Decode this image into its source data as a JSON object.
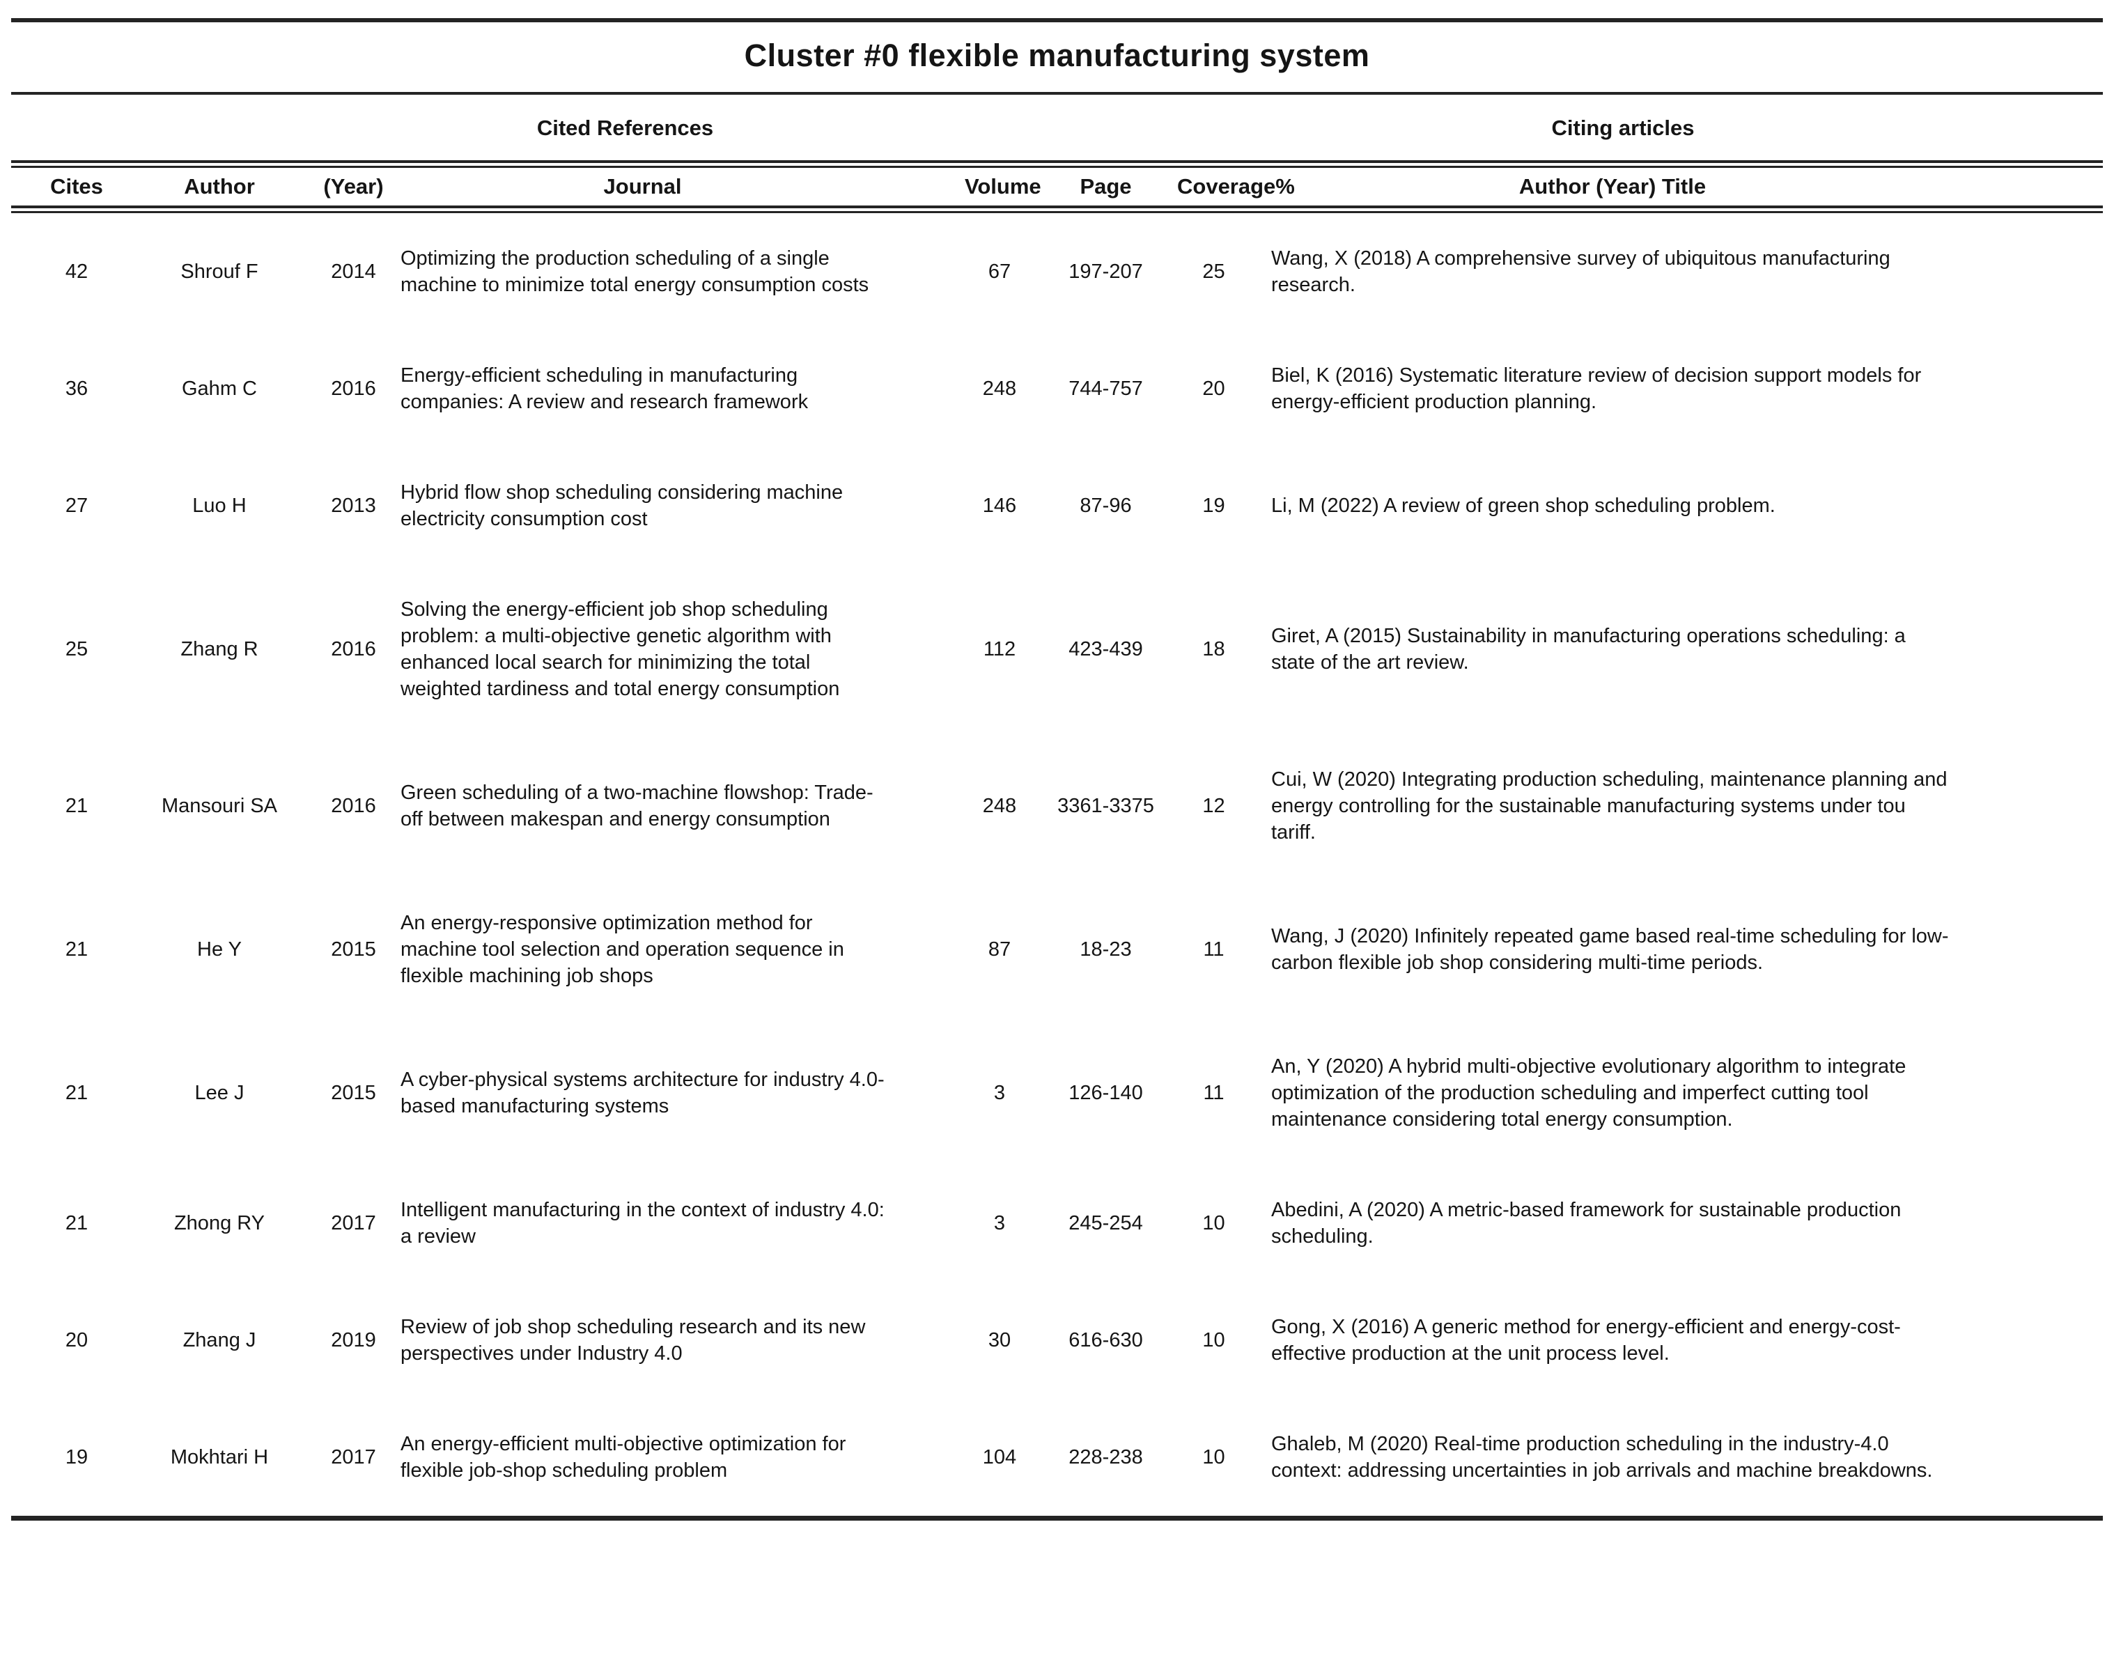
{
  "title": "Cluster #0 flexible manufacturing system",
  "group_headers": {
    "cited_references": "Cited References",
    "citing_articles": "Citing articles"
  },
  "column_headers": {
    "cites": "Cites",
    "author": "Author",
    "year": "(Year)",
    "journal": "Journal",
    "volume": "Volume",
    "page": "Page",
    "coverage": "Coverage%",
    "citing": "Author (Year) Title"
  },
  "rows": [
    {
      "cites": "42",
      "author": "Shrouf F",
      "year": "2014",
      "journal": "Optimizing the production scheduling of a single machine to minimize total energy consumption costs",
      "volume": "67",
      "page": "197-207",
      "coverage": "25",
      "citing": "Wang, X (2018) A comprehensive survey of ubiquitous manufacturing research."
    },
    {
      "cites": "36",
      "author": "Gahm C",
      "year": "2016",
      "journal": "Energy-efficient scheduling in manufacturing companies: A review and research framework",
      "volume": "248",
      "page": "744-757",
      "coverage": "20",
      "citing": "Biel, K (2016) Systematic literature review of decision support models for energy-efficient production planning."
    },
    {
      "cites": "27",
      "author": "Luo H",
      "year": "2013",
      "journal": "Hybrid flow shop scheduling considering machine electricity consumption cost",
      "volume": "146",
      "page": "87-96",
      "coverage": "19",
      "citing": "Li, M (2022) A review of green shop scheduling problem."
    },
    {
      "cites": "25",
      "author": "Zhang R",
      "year": "2016",
      "journal": "Solving the energy-efficient job shop scheduling problem: a multi-objective genetic algorithm with enhanced local search for minimizing the total weighted tardiness and total energy consumption",
      "volume": "112",
      "page": "423-439",
      "coverage": "18",
      "citing": "Giret, A (2015) Sustainability in manufacturing operations scheduling: a state of the art review."
    },
    {
      "cites": "21",
      "author": "Mansouri SA",
      "year": "2016",
      "journal": "Green scheduling of a two-machine flowshop: Trade-off between makespan and energy consumption",
      "volume": "248",
      "page": "3361-3375",
      "coverage": "12",
      "citing": "Cui, W (2020) Integrating production scheduling, maintenance planning and energy controlling for the sustainable manufacturing systems under tou tariff."
    },
    {
      "cites": "21",
      "author": "He Y",
      "year": "2015",
      "journal": "An energy-responsive optimization method for machine tool selection and operation sequence in flexible machining job shops",
      "volume": "87",
      "page": "18-23",
      "coverage": "11",
      "citing": "Wang, J (2020) Infinitely repeated game based real-time scheduling for low-carbon flexible job shop considering multi-time periods."
    },
    {
      "cites": "21",
      "author": "Lee J",
      "year": "2015",
      "journal": "A cyber-physical systems architecture for industry 4.0-based manufacturing systems",
      "volume": "3",
      "page": "126-140",
      "coverage": "11",
      "citing": "An, Y (2020) A hybrid multi-objective evolutionary algorithm to integrate optimization of the production scheduling and imperfect cutting tool maintenance considering total energy consumption."
    },
    {
      "cites": "21",
      "author": "Zhong RY",
      "year": "2017",
      "journal": "Intelligent manufacturing in the context of industry 4.0: a review",
      "volume": "3",
      "page": "245-254",
      "coverage": "10",
      "citing": "Abedini, A (2020) A metric-based framework for sustainable production scheduling."
    },
    {
      "cites": "20",
      "author": "Zhang J",
      "year": "2019",
      "journal": "Review of job shop scheduling research and its new perspectives under Industry 4.0",
      "volume": "30",
      "page": "616-630",
      "coverage": "10",
      "citing": "Gong, X (2016) A generic method for energy-efficient and energy-cost-effective production at the unit process level."
    },
    {
      "cites": "19",
      "author": "Mokhtari H",
      "year": "2017",
      "journal": "An energy-efficient multi-objective optimization for flexible job-shop scheduling problem",
      "volume": "104",
      "page": "228-238",
      "coverage": "10",
      "citing": "Ghaleb, M (2020) Real-time production scheduling in the industry-4.0 context: addressing uncertainties in job arrivals and machine breakdowns."
    }
  ],
  "colors": {
    "text": "#151515",
    "rule": "#242424",
    "background": "#ffffff"
  }
}
